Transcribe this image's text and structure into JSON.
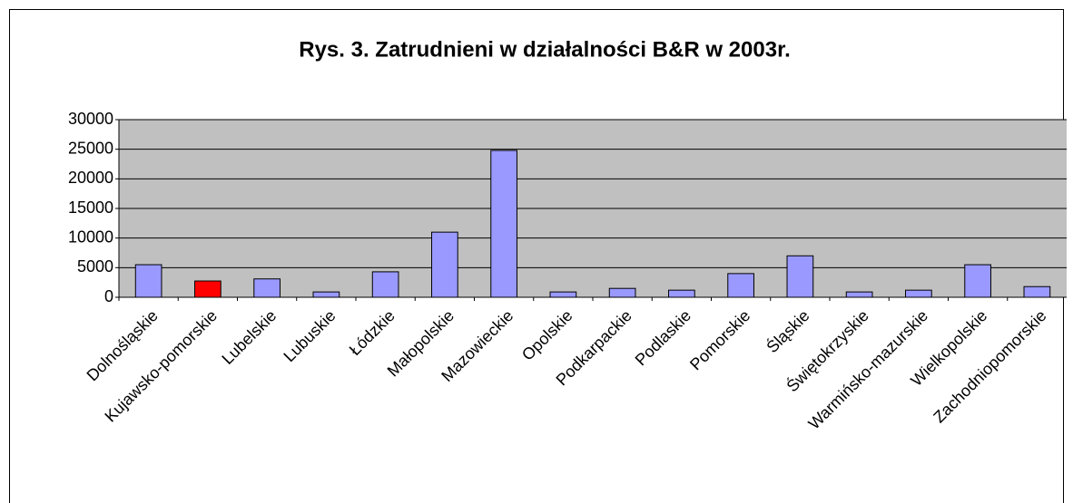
{
  "chart_data": {
    "type": "bar",
    "title": "Rys. 3. Zatrudnieni w działalności B&R w 2003r.",
    "categories": [
      "Dolnośląskie",
      "Kujawsko-pomorskie",
      "Lubelskie",
      "Lubuskie",
      "Łódzkie",
      "Małopolskie",
      "Mazowieckie",
      "Opolskie",
      "Podkarpackie",
      "Podlaskie",
      "Pomorskie",
      "Śląskie",
      "Świętokrzyskie",
      "Warmińsko-mazurskie",
      "Wielkopolskie",
      "Zachodniopomorskie"
    ],
    "values": [
      5500,
      2750,
      3100,
      900,
      4300,
      11000,
      24800,
      900,
      1500,
      1200,
      4000,
      7000,
      900,
      1200,
      5500,
      1800
    ],
    "colors": [
      "#9999ff",
      "#ff0000",
      "#9999ff",
      "#9999ff",
      "#9999ff",
      "#9999ff",
      "#9999ff",
      "#9999ff",
      "#9999ff",
      "#9999ff",
      "#9999ff",
      "#9999ff",
      "#9999ff",
      "#9999ff",
      "#9999ff",
      "#9999ff"
    ],
    "ylim": [
      0,
      30000
    ],
    "yticks": [
      0,
      5000,
      10000,
      15000,
      20000,
      25000,
      30000
    ],
    "grid": true
  }
}
